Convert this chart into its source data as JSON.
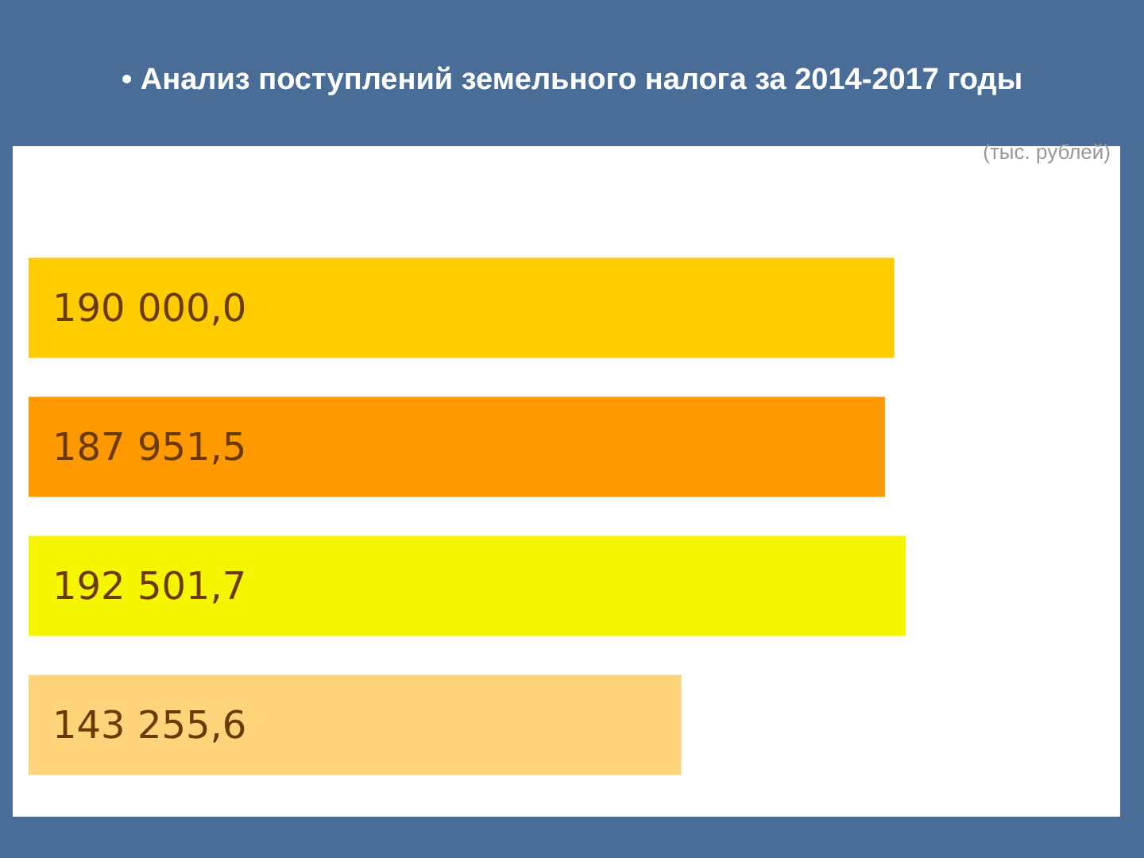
{
  "chart_data": {
    "type": "bar",
    "orientation": "horizontal",
    "title": "• Анализ поступлений земельного налога за 2014-2017 годы",
    "subtitle": "(тыс. рублей)",
    "categories": [
      null,
      null,
      null,
      null
    ],
    "values": [
      190000.0,
      187951.5,
      192501.7,
      143255.6
    ],
    "colors": [
      "#ffcc00",
      "#ff9900",
      "#f5f500",
      "#ffd47a"
    ],
    "value_labels": [
      "190 000,0",
      "187 951,5",
      "192 501,7",
      "143 255,6"
    ]
  }
}
